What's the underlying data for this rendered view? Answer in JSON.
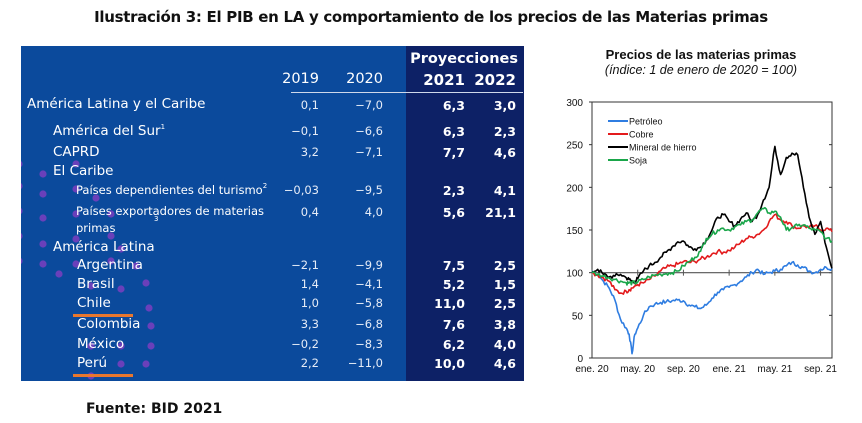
{
  "figure_title": "Ilustración 3: El PIB en LA y comportamiento de los precios de las Materias primas",
  "source": "Fuente: BID 2021",
  "table": {
    "projections_label": "Proyecciones",
    "columns": [
      "2019",
      "2020",
      "2021",
      "2022"
    ],
    "rows": [
      {
        "label": "América Latina y el Caribe",
        "sup": "",
        "level": 0,
        "values": [
          "0,1",
          "−7,0",
          "6,3",
          "3,0"
        ]
      },
      {
        "label": "América del Sur",
        "sup": "1",
        "level": 1,
        "values": [
          "−0,1",
          "−6,6",
          "6,3",
          "2,3"
        ]
      },
      {
        "label": "CAPRD",
        "sup": "",
        "level": 1,
        "values": [
          "3,2",
          "−7,1",
          "7,7",
          "4,6"
        ]
      },
      {
        "label": "El Caribe",
        "sup": "",
        "level": 1,
        "values": [
          "",
          "",
          "",
          ""
        ]
      },
      {
        "label": "Países dependientes del turismo",
        "sup": "2",
        "level": 2,
        "values": [
          "−0,03",
          "−9,5",
          "2,3",
          "4,1"
        ]
      },
      {
        "label": "Países exportadores de materias",
        "label2": "primas",
        "sup": "3",
        "level": 2,
        "values": [
          "0,4",
          "4,0",
          "5,6",
          "21,1"
        ]
      },
      {
        "label": "América Latina",
        "sup": "",
        "level": 1,
        "values": [
          "",
          "",
          "",
          ""
        ]
      },
      {
        "label": "Argentina",
        "sup": "",
        "level": 2,
        "values": [
          "−2,1",
          "−9,9",
          "7,5",
          "2,5"
        ]
      },
      {
        "label": "Brasil",
        "sup": "",
        "level": 2,
        "values": [
          "1,4",
          "−4,1",
          "5,2",
          "1,5"
        ]
      },
      {
        "label": "Chile",
        "sup": "",
        "level": 2,
        "highlight": true,
        "values": [
          "1,0",
          "−5,8",
          "11,0",
          "2,5"
        ]
      },
      {
        "label": "Colombia",
        "sup": "",
        "level": 2,
        "values": [
          "3,3",
          "−6,8",
          "7,6",
          "3,8"
        ]
      },
      {
        "label": "México",
        "sup": "",
        "level": 2,
        "values": [
          "−0,2",
          "−8,3",
          "6,2",
          "4,0"
        ]
      },
      {
        "label": "Perú",
        "sup": "",
        "level": 2,
        "highlight": true,
        "values": [
          "2,2",
          "−11,0",
          "10,0",
          "4,6"
        ]
      }
    ],
    "colors": {
      "panel": "#0b4a9c",
      "projection_band": "#0d2166",
      "highlight_underline": "#e8772e",
      "dots": "#7b3fc0"
    }
  },
  "chart_data": {
    "type": "line",
    "title": "Precios de las materias primas",
    "subtitle": "(índice: 1 de enero de 2020 = 100)",
    "xlabel": "",
    "ylabel": "",
    "ylim": [
      0,
      300
    ],
    "yticks": [
      "0",
      "50",
      "100",
      "150",
      "200",
      "250",
      "300"
    ],
    "xlim_months": [
      0,
      21
    ],
    "xticks": [
      {
        "label": "ene. 20",
        "month": 0
      },
      {
        "label": "may. 20",
        "month": 4
      },
      {
        "label": "sep. 20",
        "month": 8
      },
      {
        "label": "ene. 21",
        "month": 12
      },
      {
        "label": "may. 21",
        "month": 16
      },
      {
        "label": "sep. 21",
        "month": 20
      }
    ],
    "reference_line": 100,
    "legend_position": "top-left",
    "x_months": [
      0,
      0.5,
      1,
      1.5,
      2,
      2.5,
      3,
      3.25,
      3.5,
      3.75,
      4,
      4.5,
      5,
      5.5,
      6,
      6.5,
      7,
      7.5,
      8,
      8.5,
      9,
      9.5,
      10,
      10.5,
      11,
      11.5,
      12,
      12.5,
      13,
      13.5,
      14,
      14.5,
      15,
      15.5,
      16,
      16.5,
      17,
      17.5,
      18,
      18.5,
      19,
      19.5,
      20,
      20.5,
      21
    ],
    "series": [
      {
        "name": "Petróleo",
        "color": "#2f7de1",
        "values": [
          102,
          98,
          90,
          82,
          68,
          45,
          35,
          28,
          5,
          28,
          35,
          50,
          60,
          63,
          65,
          66,
          67,
          68,
          67,
          62,
          60,
          58,
          62,
          70,
          77,
          80,
          83,
          86,
          90,
          95,
          100,
          104,
          98,
          100,
          102,
          104,
          108,
          112,
          109,
          106,
          102,
          100,
          104,
          106,
          105
        ]
      },
      {
        "name": "Cobre",
        "color": "#e31a1c",
        "values": [
          100,
          97,
          94,
          90,
          80,
          76,
          78,
          80,
          82,
          84,
          86,
          88,
          92,
          96,
          102,
          106,
          108,
          110,
          113,
          112,
          113,
          116,
          118,
          122,
          125,
          124,
          126,
          130,
          135,
          140,
          142,
          145,
          150,
          160,
          168,
          162,
          160,
          155,
          152,
          155,
          153,
          155,
          150,
          152,
          148
        ]
      },
      {
        "name": "Mineral de hierro",
        "color": "#000000",
        "values": [
          101,
          104,
          98,
          95,
          96,
          98,
          94,
          92,
          90,
          90,
          93,
          102,
          108,
          112,
          118,
          124,
          130,
          136,
          137,
          130,
          128,
          130,
          138,
          150,
          165,
          168,
          160,
          155,
          163,
          170,
          160,
          168,
          185,
          200,
          248,
          215,
          235,
          240,
          238,
          200,
          165,
          145,
          160,
          130,
          105
        ]
      },
      {
        "name": "Soja",
        "color": "#1aa64a",
        "values": [
          100,
          98,
          96,
          94,
          92,
          90,
          88,
          88,
          88,
          88,
          89,
          92,
          95,
          97,
          98,
          99,
          100,
          102,
          108,
          113,
          118,
          125,
          140,
          145,
          150,
          152,
          150,
          154,
          156,
          160,
          162,
          170,
          175,
          170,
          172,
          165,
          150,
          153,
          155,
          156,
          152,
          150,
          148,
          140,
          137
        ]
      }
    ]
  }
}
